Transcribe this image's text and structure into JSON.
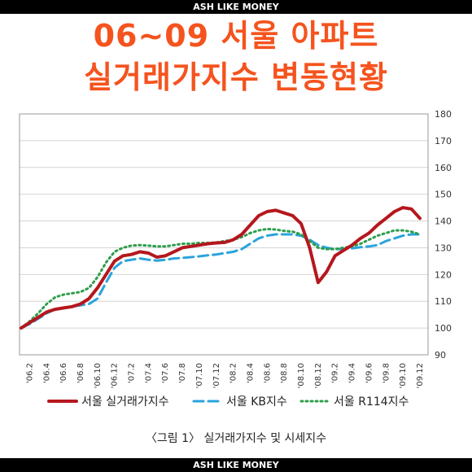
{
  "brand": {
    "top": "ASH LIKE MONEY",
    "bottom": "ASH LIKE MONEY"
  },
  "headline": {
    "line1": "06~09 서울 아파트",
    "line2": "실거래가지수 변동현황"
  },
  "caption": "〈그림 1〉 실거래가지수 및 시세지수",
  "colors": {
    "headline": "#f5531e",
    "brand_bg": "#000000"
  },
  "chart_data": {
    "type": "line",
    "x": [
      "'06.1",
      "'06.2",
      "'06.3",
      "'06.4",
      "'06.5",
      "'06.6",
      "'06.7",
      "'06.8",
      "'06.9",
      "'06.10",
      "'06.11",
      "'06.12",
      "'07.1",
      "'07.2",
      "'07.3",
      "'07.4",
      "'07.5",
      "'07.6",
      "'07.7",
      "'07.8",
      "'07.9",
      "'07.10",
      "'07.11",
      "'07.12",
      "'08.1",
      "'08.2",
      "'08.3",
      "'08.4",
      "'08.5",
      "'08.6",
      "'08.7",
      "'08.8",
      "'08.9",
      "'08.10",
      "'08.11",
      "'08.12",
      "'09.1",
      "'09.2",
      "'09.3",
      "'09.4",
      "'09.5",
      "'09.6",
      "'09.7",
      "'09.8",
      "'09.9",
      "'09.10",
      "'09.11",
      "'09.12"
    ],
    "tick_labels": [
      "'06.2",
      "'06.4",
      "'06.6",
      "'06.8",
      "'06.10",
      "'06.12",
      "'07.2",
      "'07.4",
      "'07.6",
      "'07.8",
      "'07.10",
      "'07.12",
      "'08.2",
      "'08.4",
      "'08.6",
      "'08.8",
      "'08.10",
      "'08.12",
      "'09.2",
      "'09.4",
      "'09.6",
      "'09.8",
      "'09.10",
      "'09.12"
    ],
    "y_ticks": [
      90,
      100,
      110,
      120,
      130,
      140,
      150,
      160,
      170,
      180
    ],
    "ylim": [
      90,
      180
    ],
    "y_axis_side": "right",
    "grid": "horizontal",
    "legend_position": "bottom",
    "series": [
      {
        "name": "서울 실거래가지수",
        "color": "#b5171e",
        "style": "solid",
        "values": [
          100,
          102,
          104,
          106,
          107,
          107.5,
          108,
          109,
          111,
          115,
          120,
          125,
          127,
          127.5,
          128.5,
          128,
          126.5,
          127,
          128.5,
          130,
          130.5,
          131,
          131.5,
          131.8,
          132,
          133,
          135,
          138.5,
          142,
          143.5,
          144,
          143,
          142,
          139,
          130,
          117,
          121,
          127,
          129,
          131,
          133.5,
          135.5,
          138.5,
          141,
          143.5,
          145,
          144.5,
          141
        ]
      },
      {
        "name": "서울 KB지수",
        "color": "#2aa3dc",
        "style": "dashed",
        "values": [
          100,
          101.5,
          103.5,
          105.5,
          107,
          107.5,
          108,
          108.5,
          109,
          111,
          117,
          122.5,
          125,
          125.5,
          126,
          125.5,
          125.2,
          125.5,
          126,
          126.2,
          126.5,
          126.8,
          127.2,
          127.5,
          128,
          128.5,
          129.5,
          131.5,
          133.5,
          134.5,
          135,
          135,
          135,
          134.5,
          133,
          131,
          130,
          129.5,
          129.5,
          129.8,
          130.2,
          130.5,
          131,
          132.5,
          133.5,
          134.5,
          135,
          135
        ]
      },
      {
        "name": "서울 R114지수",
        "color": "#2e9e4c",
        "style": "dotted",
        "values": [
          100,
          102.5,
          105.5,
          109,
          111.5,
          112.5,
          113,
          113.5,
          115,
          119,
          124.5,
          128.5,
          130,
          130.8,
          131,
          130.8,
          130.5,
          130.5,
          131,
          131.5,
          131.5,
          131.8,
          131.8,
          132,
          132.5,
          133,
          134,
          135.5,
          136.5,
          137,
          136.8,
          136.3,
          136,
          135,
          132.5,
          130,
          129.5,
          129.5,
          130,
          130.5,
          131.5,
          133,
          134.5,
          135.5,
          136.5,
          136.5,
          136,
          135
        ]
      }
    ]
  }
}
